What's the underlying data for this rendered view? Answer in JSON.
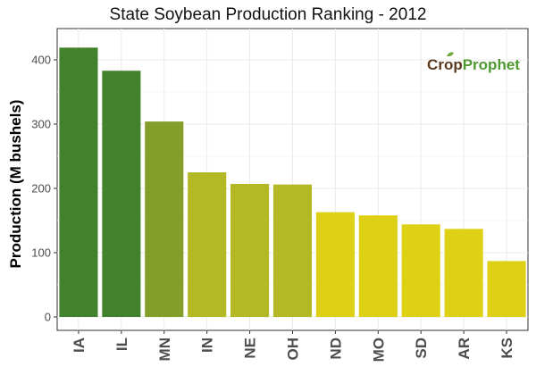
{
  "chart_data": {
    "type": "bar",
    "title": "State Soybean Production Ranking - 2012",
    "xlabel": "",
    "ylabel": "Production (M bushels)",
    "ylim": [
      0,
      440
    ],
    "yticks": [
      0,
      100,
      200,
      300,
      400
    ],
    "categories": [
      "IA",
      "IL",
      "MN",
      "IN",
      "NE",
      "OH",
      "ND",
      "MO",
      "SD",
      "AR",
      "KS"
    ],
    "values": [
      419,
      383,
      304,
      225,
      207,
      206,
      163,
      158,
      144,
      137,
      87
    ],
    "bar_colors": [
      "#43822d",
      "#43822d",
      "#849e2a",
      "#b3b924",
      "#b3b924",
      "#b3b924",
      "#ddd015",
      "#ddd015",
      "#ddd015",
      "#ddd015",
      "#ddd015"
    ],
    "grid": true,
    "legend": "none"
  },
  "logo": {
    "text_a": "Crop",
    "text_b": "Prophet",
    "color_a": "#5a3a1e",
    "color_b": "#4f9a2f"
  }
}
